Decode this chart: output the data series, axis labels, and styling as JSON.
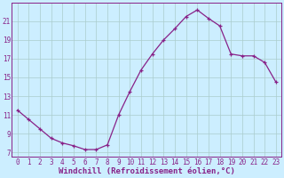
{
  "x_vals": [
    0,
    1,
    2,
    3,
    4,
    5,
    6,
    7,
    8,
    9,
    10,
    11,
    12,
    13,
    14,
    15,
    16,
    17,
    18,
    19,
    20,
    21,
    22,
    23
  ],
  "y_vals": [
    11.5,
    10.5,
    9.5,
    8.5,
    8.0,
    7.7,
    7.3,
    7.3,
    7.8,
    11.0,
    13.5,
    15.8,
    17.5,
    19.0,
    20.2,
    21.5,
    22.2,
    21.3,
    20.5,
    17.5,
    17.3,
    17.3,
    16.6,
    14.5
  ],
  "line_color": "#882288",
  "bg_color": "#cceeff",
  "grid_color": "#aacccc",
  "tick_color": "#882288",
  "xlabel": "Windchill (Refroidissement éolien,°C)",
  "yticks": [
    7,
    9,
    11,
    13,
    15,
    17,
    19,
    21
  ],
  "xticks": [
    0,
    1,
    2,
    3,
    4,
    5,
    6,
    7,
    8,
    9,
    10,
    11,
    12,
    13,
    14,
    15,
    16,
    17,
    18,
    19,
    20,
    21,
    22,
    23
  ],
  "xlim": [
    -0.5,
    23.5
  ],
  "ylim": [
    6.5,
    23.0
  ],
  "font_size": 5.5,
  "label_font_size": 6.5
}
